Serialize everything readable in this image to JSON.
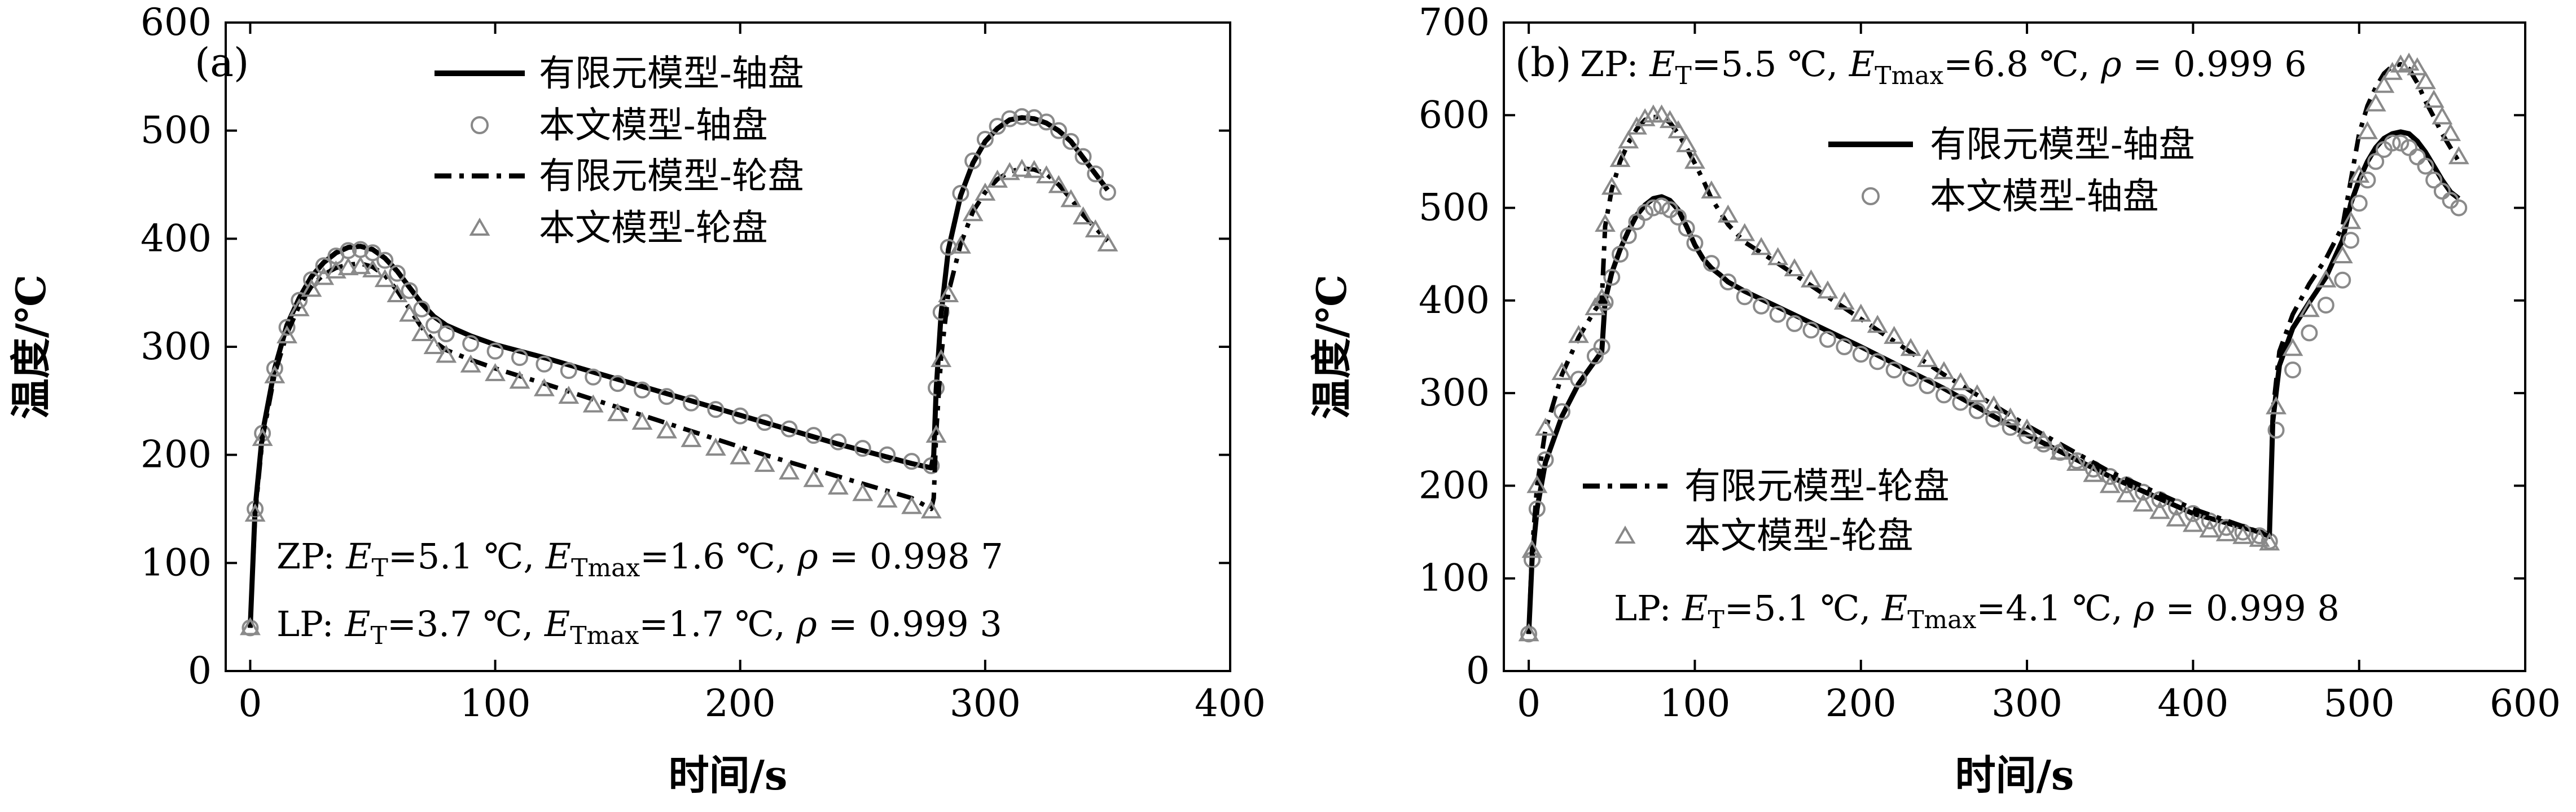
{
  "figure": {
    "panels": [
      {
        "tag": "(a)",
        "ylabel": "温度/℃",
        "xlabel": "时间/s",
        "stats": [
          {
            "prefix": "ZP: ",
            "e": "E",
            "t_sub": "T",
            "eq1": "=5.1 ℃, ",
            "e2": "E",
            "tmax_sub": "Tmax",
            "eq2": "=1.6 ℃, ",
            "rho": "ρ",
            "eq3": " = 0.998 7"
          },
          {
            "prefix": "LP: ",
            "e": "E",
            "t_sub": "T",
            "eq1": "=3.7 ℃, ",
            "e2": "E",
            "tmax_sub": "Tmax",
            "eq2": "=1.7 ℃, ",
            "rho": "ρ",
            "eq3": " = 0.999 3"
          }
        ],
        "legend": [
          "有限元模型-轴盘",
          "本文模型-轴盘",
          "有限元模型-轮盘",
          "本文模型-轮盘"
        ]
      },
      {
        "tag": "(b)",
        "ylabel": "温度/℃",
        "xlabel": "时间/s",
        "stats": [
          {
            "prefix": "ZP: ",
            "e": "E",
            "t_sub": "T",
            "eq1": "=5.5 ℃, ",
            "e2": "E",
            "tmax_sub": "Tmax",
            "eq2": "=6.8 ℃, ",
            "rho": "ρ",
            "eq3": " = 0.999 6"
          },
          {
            "prefix": "LP: ",
            "e": "E",
            "t_sub": "T",
            "eq1": "=5.1 ℃, ",
            "e2": "E",
            "tmax_sub": "Tmax",
            "eq2": "=4.1 ℃, ",
            "rho": "ρ",
            "eq3": " = 0.999 8"
          }
        ],
        "legend_top": [
          "有限元模型-轴盘",
          "本文模型-轴盘"
        ],
        "legend_bottom": [
          "有限元模型-轮盘",
          "本文模型-轮盘"
        ]
      }
    ]
  },
  "chart_data": [
    {
      "type": "line",
      "title": "(a)",
      "xlabel": "时间/s",
      "ylabel": "温度/℃",
      "xlim": [
        -10,
        400
      ],
      "ylim": [
        0,
        600
      ],
      "xticks": [
        0,
        100,
        200,
        300,
        400
      ],
      "yticks": [
        0,
        100,
        200,
        300,
        400,
        500,
        600
      ],
      "series": [
        {
          "name": "有限元模型-轴盘",
          "style": "solid",
          "x": [
            0,
            2,
            5,
            10,
            15,
            20,
            25,
            30,
            35,
            40,
            45,
            50,
            55,
            60,
            65,
            70,
            75,
            80,
            90,
            100,
            120,
            150,
            180,
            210,
            240,
            270,
            278,
            279,
            280,
            282,
            285,
            290,
            295,
            300,
            305,
            310,
            315,
            320,
            325,
            330,
            335,
            340,
            345,
            350
          ],
          "y": [
            40,
            150,
            220,
            280,
            320,
            345,
            365,
            378,
            387,
            392,
            393,
            390,
            382,
            370,
            355,
            340,
            328,
            320,
            310,
            302,
            290,
            270,
            250,
            230,
            210,
            192,
            188,
            200,
            260,
            330,
            390,
            440,
            470,
            490,
            502,
            510,
            512,
            511,
            507,
            500,
            490,
            475,
            460,
            445
          ]
        },
        {
          "name": "本文模型-轴盘",
          "style": "circle",
          "x": [
            0,
            2,
            5,
            10,
            15,
            20,
            25,
            30,
            35,
            40,
            45,
            50,
            55,
            60,
            65,
            70,
            75,
            80,
            90,
            100,
            110,
            120,
            130,
            140,
            150,
            160,
            170,
            180,
            190,
            200,
            210,
            220,
            230,
            240,
            250,
            260,
            270,
            278,
            280,
            282,
            285,
            290,
            295,
            300,
            305,
            310,
            315,
            320,
            325,
            330,
            335,
            340,
            345,
            350
          ],
          "y": [
            40,
            150,
            220,
            280,
            318,
            343,
            362,
            375,
            384,
            389,
            390,
            387,
            380,
            368,
            352,
            335,
            320,
            312,
            303,
            296,
            290,
            284,
            278,
            272,
            266,
            260,
            254,
            248,
            242,
            236,
            230,
            224,
            218,
            212,
            206,
            200,
            194,
            190,
            262,
            332,
            392,
            442,
            472,
            492,
            504,
            511,
            513,
            512,
            508,
            500,
            490,
            476,
            460,
            443
          ]
        },
        {
          "name": "有限元模型-轮盘",
          "style": "dashdot",
          "x": [
            0,
            2,
            5,
            10,
            15,
            20,
            25,
            30,
            35,
            40,
            45,
            50,
            55,
            60,
            65,
            70,
            75,
            80,
            90,
            100,
            120,
            150,
            180,
            210,
            240,
            270,
            278,
            279,
            280,
            282,
            285,
            290,
            295,
            300,
            305,
            310,
            315,
            320,
            325,
            330,
            335,
            340,
            345,
            350
          ],
          "y": [
            40,
            145,
            215,
            275,
            312,
            338,
            356,
            367,
            373,
            376,
            377,
            374,
            366,
            352,
            335,
            318,
            305,
            297,
            288,
            280,
            266,
            244,
            222,
            200,
            180,
            160,
            150,
            160,
            220,
            290,
            350,
            395,
            425,
            443,
            455,
            462,
            465,
            464,
            460,
            450,
            437,
            422,
            410,
            398
          ]
        },
        {
          "name": "本文模型-轮盘",
          "style": "triangle",
          "x": [
            0,
            2,
            5,
            10,
            15,
            20,
            25,
            30,
            35,
            40,
            45,
            50,
            55,
            60,
            65,
            70,
            75,
            80,
            90,
            100,
            110,
            120,
            130,
            140,
            150,
            160,
            170,
            180,
            190,
            200,
            210,
            220,
            230,
            240,
            250,
            260,
            270,
            278,
            280,
            282,
            285,
            290,
            295,
            300,
            305,
            310,
            315,
            320,
            325,
            330,
            335,
            340,
            345,
            350
          ],
          "y": [
            40,
            145,
            215,
            273,
            310,
            335,
            353,
            364,
            370,
            373,
            374,
            371,
            362,
            348,
            330,
            312,
            300,
            292,
            283,
            275,
            268,
            261,
            254,
            246,
            238,
            230,
            222,
            214,
            206,
            198,
            191,
            184,
            177,
            170,
            164,
            158,
            152,
            148,
            218,
            288,
            348,
            393,
            423,
            442,
            454,
            461,
            464,
            463,
            458,
            449,
            436,
            420,
            408,
            395
          ]
        }
      ]
    },
    {
      "type": "line",
      "title": "(b)",
      "xlabel": "时间/s",
      "ylabel": "温度/℃",
      "xlim": [
        -15,
        600
      ],
      "ylim": [
        0,
        700
      ],
      "xticks": [
        0,
        100,
        200,
        300,
        400,
        500,
        600
      ],
      "yticks": [
        0,
        100,
        200,
        300,
        400,
        500,
        600,
        700
      ],
      "series": [
        {
          "name": "有限元模型-轴盘",
          "style": "solid",
          "x": [
            0,
            2,
            5,
            10,
            20,
            30,
            40,
            44,
            46,
            50,
            55,
            60,
            65,
            70,
            75,
            80,
            85,
            90,
            95,
            100,
            105,
            110,
            115,
            120,
            130,
            150,
            200,
            250,
            300,
            350,
            400,
            440,
            446,
            448,
            452,
            460,
            470,
            480,
            490,
            495,
            500,
            505,
            510,
            515,
            520,
            525,
            530,
            535,
            540,
            545,
            550,
            555,
            560
          ],
          "y": [
            40,
            120,
            175,
            225,
            275,
            310,
            335,
            345,
            400,
            430,
            455,
            475,
            492,
            503,
            510,
            512,
            508,
            498,
            480,
            460,
            445,
            435,
            428,
            420,
            410,
            393,
            350,
            305,
            255,
            210,
            170,
            150,
            148,
            270,
            330,
            370,
            398,
            425,
            465,
            505,
            530,
            550,
            565,
            575,
            580,
            582,
            580,
            572,
            560,
            545,
            530,
            517,
            510
          ]
        },
        {
          "name": "本文模型-轴盘",
          "style": "circle",
          "x": [
            0,
            2,
            5,
            10,
            20,
            30,
            40,
            44,
            46,
            50,
            55,
            60,
            65,
            70,
            75,
            80,
            85,
            90,
            95,
            100,
            110,
            120,
            130,
            140,
            150,
            160,
            170,
            180,
            190,
            200,
            210,
            220,
            230,
            240,
            250,
            260,
            270,
            280,
            290,
            300,
            310,
            320,
            330,
            340,
            350,
            360,
            370,
            380,
            390,
            400,
            410,
            420,
            430,
            440,
            446,
            450,
            460,
            470,
            480,
            490,
            495,
            500,
            505,
            510,
            515,
            520,
            525,
            530,
            535,
            540,
            545,
            550,
            555,
            560
          ],
          "y": [
            40,
            120,
            175,
            228,
            280,
            315,
            340,
            350,
            398,
            425,
            450,
            470,
            485,
            495,
            500,
            502,
            498,
            490,
            478,
            462,
            440,
            420,
            404,
            394,
            385,
            375,
            368,
            358,
            350,
            342,
            334,
            325,
            316,
            308,
            298,
            290,
            281,
            272,
            263,
            254,
            245,
            236,
            227,
            218,
            210,
            201,
            193,
            185,
            177,
            170,
            162,
            155,
            150,
            146,
            140,
            260,
            325,
            365,
            395,
            422,
            465,
            505,
            530,
            550,
            563,
            570,
            570,
            565,
            555,
            545,
            530,
            518,
            508,
            500
          ]
        },
        {
          "name": "有限元模型-轮盘",
          "style": "dashdot",
          "x": [
            0,
            2,
            5,
            10,
            20,
            30,
            40,
            44,
            46,
            50,
            55,
            60,
            65,
            70,
            75,
            80,
            85,
            90,
            95,
            100,
            105,
            110,
            120,
            130,
            150,
            200,
            250,
            300,
            350,
            400,
            440,
            446,
            448,
            452,
            460,
            470,
            480,
            490,
            495,
            500,
            505,
            510,
            515,
            520,
            525,
            530,
            535,
            540,
            545,
            550,
            555,
            560
          ],
          "y": [
            40,
            130,
            200,
            260,
            320,
            360,
            390,
            400,
            480,
            520,
            550,
            570,
            585,
            595,
            598,
            598,
            592,
            580,
            565,
            548,
            530,
            510,
            482,
            463,
            440,
            380,
            320,
            265,
            215,
            175,
            150,
            145,
            280,
            345,
            385,
            418,
            445,
            480,
            530,
            580,
            610,
            630,
            645,
            653,
            655,
            650,
            635,
            615,
            598,
            580,
            565,
            550
          ]
        },
        {
          "name": "本文模型-轮盘",
          "style": "triangle",
          "x": [
            0,
            2,
            5,
            10,
            20,
            30,
            40,
            44,
            46,
            50,
            55,
            60,
            65,
            70,
            75,
            80,
            85,
            90,
            95,
            100,
            110,
            120,
            130,
            140,
            150,
            160,
            170,
            180,
            190,
            200,
            210,
            220,
            230,
            240,
            250,
            260,
            270,
            280,
            290,
            300,
            310,
            320,
            330,
            340,
            350,
            360,
            370,
            380,
            390,
            400,
            410,
            420,
            430,
            440,
            446,
            450,
            460,
            470,
            480,
            490,
            495,
            500,
            505,
            510,
            515,
            520,
            525,
            530,
            535,
            540,
            545,
            550,
            555,
            560
          ],
          "y": [
            40,
            130,
            200,
            262,
            322,
            362,
            392,
            402,
            482,
            522,
            552,
            572,
            587,
            596,
            600,
            600,
            594,
            583,
            568,
            550,
            518,
            492,
            472,
            457,
            446,
            434,
            422,
            410,
            398,
            385,
            373,
            361,
            348,
            336,
            323,
            311,
            298,
            286,
            273,
            261,
            248,
            236,
            224,
            212,
            200,
            190,
            180,
            172,
            164,
            158,
            152,
            148,
            145,
            142,
            138,
            285,
            348,
            390,
            422,
            448,
            485,
            535,
            582,
            612,
            632,
            646,
            654,
            656,
            651,
            636,
            616,
            598,
            580,
            555
          ]
        }
      ]
    }
  ]
}
